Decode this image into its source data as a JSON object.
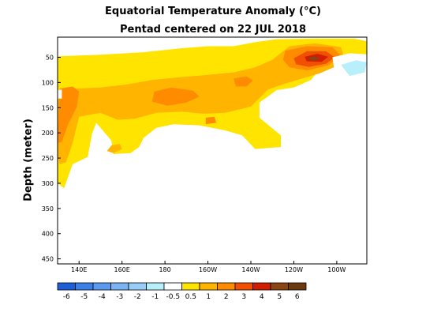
{
  "chart_data": {
    "type": "heatmap",
    "title": "Equatorial Temperature Anomaly (°C)",
    "subtitle": "Pentad centered on 22 JUL 2018",
    "ylabel": "Depth (meter)",
    "xlabel": "",
    "x_ticks": [
      {
        "label": "140E",
        "lon": 140
      },
      {
        "label": "160E",
        "lon": 160
      },
      {
        "label": "180",
        "lon": 180
      },
      {
        "label": "160W",
        "lon": 200
      },
      {
        "label": "140W",
        "lon": 220
      },
      {
        "label": "120W",
        "lon": 240
      },
      {
        "label": "100W",
        "lon": 260
      }
    ],
    "y_ticks": [
      {
        "label": "50",
        "depth": 50
      },
      {
        "label": "100",
        "depth": 100
      },
      {
        "label": "150",
        "depth": 150
      },
      {
        "label": "200",
        "depth": 200
      },
      {
        "label": "250",
        "depth": 250
      },
      {
        "label": "300",
        "depth": 300
      },
      {
        "label": "350",
        "depth": 350
      },
      {
        "label": "400",
        "depth": 400
      },
      {
        "label": "450",
        "depth": 450
      }
    ],
    "xlim": [
      130,
      274
    ],
    "ylim": [
      10,
      460
    ],
    "colorbar": {
      "levels": [
        -6,
        -5,
        -4,
        -3,
        -2,
        -1,
        -0.5,
        0.5,
        1,
        2,
        3,
        4,
        5,
        6
      ],
      "labels": [
        "-6",
        "-5",
        "-4",
        "-3",
        "-2",
        "-1",
        "-0.5",
        "0.5",
        "1",
        "2",
        "3",
        "4",
        "5",
        "6"
      ],
      "colors": [
        "#1e5fd8",
        "#3d7fe6",
        "#5b9bef",
        "#7ab4f5",
        "#98cdf7",
        "#b9eefb",
        "#ffffff",
        "#ffe400",
        "#ffb400",
        "#ff8c00",
        "#f05000",
        "#d21e00",
        "#8b4513",
        "#6b3a10"
      ]
    },
    "regions": [
      {
        "level": 0.5,
        "points": [
          [
            130,
            48
          ],
          [
            150,
            45
          ],
          [
            170,
            40
          ],
          [
            188,
            32
          ],
          [
            200,
            28
          ],
          [
            212,
            28
          ],
          [
            222,
            20
          ],
          [
            232,
            14
          ],
          [
            250,
            13
          ],
          [
            268,
            13
          ],
          [
            274,
            18
          ],
          [
            274,
            55
          ],
          [
            262,
            62
          ],
          [
            252,
            73
          ],
          [
            248,
            95
          ],
          [
            240,
            110
          ],
          [
            232,
            115
          ],
          [
            224,
            140
          ],
          [
            224,
            170
          ],
          [
            234,
            205
          ],
          [
            234,
            228
          ],
          [
            222,
            232
          ],
          [
            216,
            205
          ],
          [
            208,
            195
          ],
          [
            196,
            185
          ],
          [
            184,
            183
          ],
          [
            176,
            190
          ],
          [
            170,
            210
          ],
          [
            168,
            228
          ],
          [
            164,
            240
          ],
          [
            156,
            242
          ],
          [
            155,
            215
          ],
          [
            150,
            190
          ],
          [
            148,
            180
          ],
          [
            146,
            202
          ],
          [
            144,
            248
          ],
          [
            137,
            262
          ],
          [
            133,
            310
          ],
          [
            130,
            300
          ]
        ]
      },
      {
        "level": 1,
        "points": [
          [
            130,
            118
          ],
          [
            138,
            112
          ],
          [
            150,
            110
          ],
          [
            162,
            104
          ],
          [
            174,
            95
          ],
          [
            186,
            90
          ],
          [
            200,
            85
          ],
          [
            212,
            80
          ],
          [
            222,
            70
          ],
          [
            230,
            55
          ],
          [
            238,
            28
          ],
          [
            250,
            22
          ],
          [
            262,
            30
          ],
          [
            264,
            60
          ],
          [
            252,
            82
          ],
          [
            244,
            92
          ],
          [
            236,
            102
          ],
          [
            228,
            114
          ],
          [
            220,
            148
          ],
          [
            208,
            160
          ],
          [
            198,
            162
          ],
          [
            188,
            158
          ],
          [
            176,
            160
          ],
          [
            166,
            172
          ],
          [
            158,
            174
          ],
          [
            150,
            160
          ],
          [
            140,
            168
          ],
          [
            137,
            220
          ],
          [
            134,
            258
          ],
          [
            131,
            262
          ],
          [
            130,
            240
          ]
        ]
      },
      {
        "level": 1,
        "points": [
          [
            155,
            225
          ],
          [
            159,
            222
          ],
          [
            160,
            232
          ],
          [
            156,
            240
          ],
          [
            153,
            236
          ]
        ]
      },
      {
        "level": 2,
        "points": [
          [
            131,
            112
          ],
          [
            137,
            108
          ],
          [
            140,
            118
          ],
          [
            139,
            148
          ],
          [
            135,
            182
          ],
          [
            132,
            218
          ],
          [
            130,
            220
          ]
        ]
      },
      {
        "level": 2,
        "points": [
          [
            175,
            118
          ],
          [
            183,
            110
          ],
          [
            193,
            116
          ],
          [
            196,
            128
          ],
          [
            190,
            140
          ],
          [
            181,
            146
          ],
          [
            174,
            138
          ]
        ]
      },
      {
        "level": 2,
        "points": [
          [
            212,
            92
          ],
          [
            218,
            88
          ],
          [
            221,
            96
          ],
          [
            218,
            108
          ],
          [
            213,
            108
          ]
        ]
      },
      {
        "level": 2,
        "points": [
          [
            236,
            37
          ],
          [
            246,
            28
          ],
          [
            258,
            30
          ],
          [
            262,
            47
          ],
          [
            256,
            66
          ],
          [
            246,
            76
          ],
          [
            238,
            70
          ],
          [
            235,
            55
          ]
        ]
      },
      {
        "level": 2,
        "points": [
          [
            199,
            170
          ],
          [
            203,
            168
          ],
          [
            204,
            180
          ],
          [
            199,
            183
          ]
        ]
      },
      {
        "level": 3,
        "points": [
          [
            240,
            52
          ],
          [
            246,
            38
          ],
          [
            255,
            38
          ],
          [
            259,
            50
          ],
          [
            255,
            63
          ],
          [
            247,
            69
          ],
          [
            241,
            64
          ]
        ]
      },
      {
        "level": 4,
        "points": [
          [
            245,
            49
          ],
          [
            251,
            43
          ],
          [
            256,
            49
          ],
          [
            253,
            59
          ],
          [
            246,
            58
          ]
        ]
      },
      {
        "level": 5,
        "points": [
          [
            247,
            50
          ],
          [
            250,
            48
          ],
          [
            252,
            54
          ],
          [
            248,
            57
          ]
        ]
      },
      {
        "level": -0.5,
        "points": [
          [
            258,
            50
          ],
          [
            266,
            42
          ],
          [
            274,
            44
          ],
          [
            274,
            80
          ],
          [
            264,
            86
          ],
          [
            259,
            80
          ]
        ]
      },
      {
        "level": -1,
        "points": [
          [
            262,
            65
          ],
          [
            269,
            56
          ],
          [
            274,
            60
          ],
          [
            273,
            80
          ],
          [
            266,
            87
          ]
        ]
      },
      {
        "level": -0.5,
        "points": [
          [
            130,
            115
          ],
          [
            132,
            114
          ],
          [
            132,
            132
          ],
          [
            130,
            132
          ]
        ]
      },
      {
        "level": -0.5,
        "points": [
          [
            140,
            330
          ],
          [
            143,
            315
          ],
          [
            148,
            318
          ],
          [
            146,
            370
          ],
          [
            144,
            425
          ],
          [
            141,
            450
          ],
          [
            139,
            408
          ]
        ]
      },
      {
        "level": -0.5,
        "points": [
          [
            147,
            350
          ],
          [
            152,
            322
          ],
          [
            156,
            315
          ],
          [
            154,
            370
          ],
          [
            150,
            418
          ],
          [
            146,
            450
          ],
          [
            145,
            410
          ]
        ]
      }
    ]
  }
}
